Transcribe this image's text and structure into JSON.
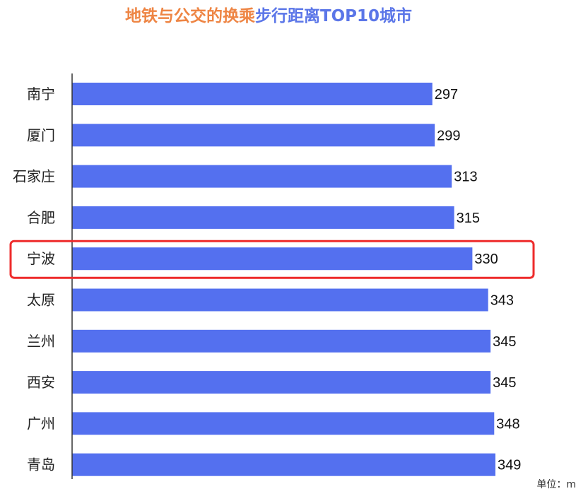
{
  "chart_data": {
    "type": "bar",
    "orientation": "horizontal",
    "title_parts": [
      "地铁与公交的换乘",
      "步行距离TOP10城市"
    ],
    "categories": [
      "南宁",
      "厦门",
      "石家庄",
      "合肥",
      "宁波",
      "太原",
      "兰州",
      "西安",
      "广州",
      "青岛"
    ],
    "values": [
      297,
      299,
      313,
      315,
      330,
      343,
      345,
      345,
      348,
      349
    ],
    "highlighted_category": "宁波",
    "unit_label": "单位：m",
    "xlim": [
      0,
      349
    ],
    "grid": false,
    "legend": "none",
    "colors": {
      "bar": "#5470ef",
      "highlight_box": "#ee2b2b",
      "title_part_1": "#ee8544",
      "title_part_2": "#5b76e8",
      "axis": "#333333"
    }
  }
}
